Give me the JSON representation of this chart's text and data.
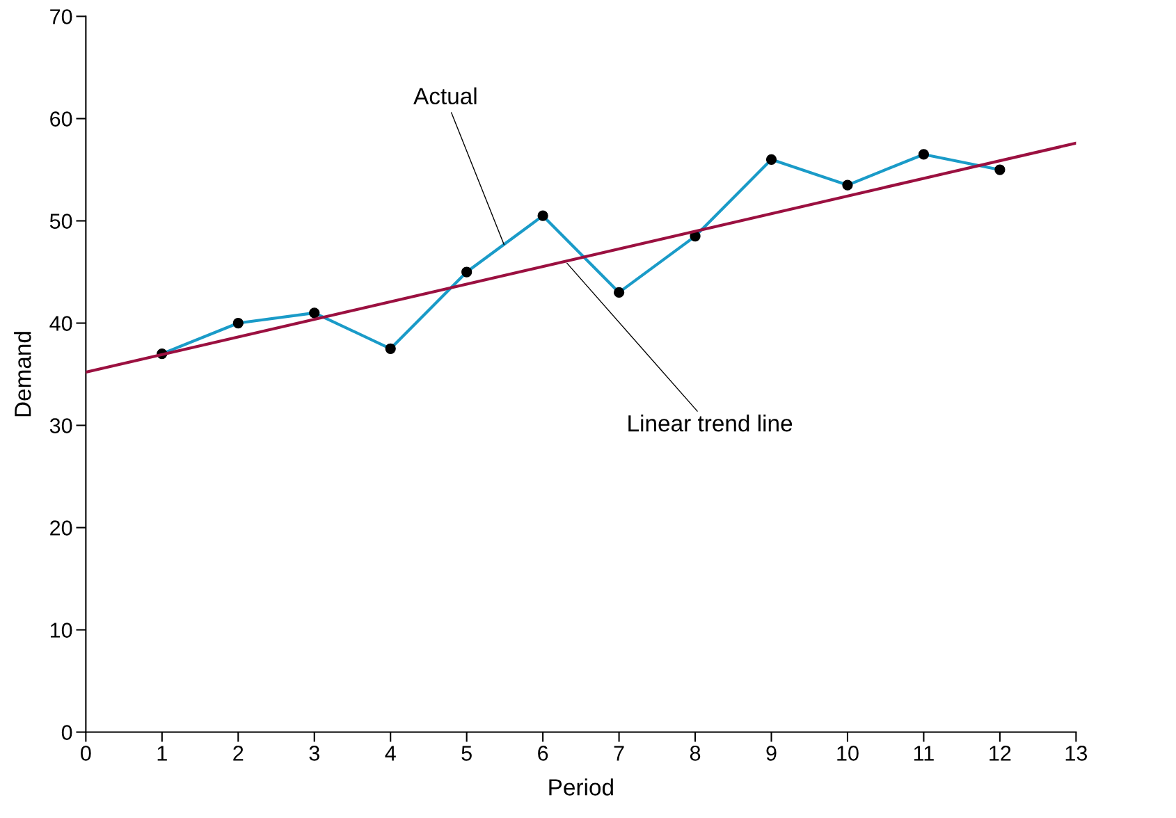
{
  "chart_data": {
    "type": "line",
    "xlabel": "Period",
    "ylabel": "Demand",
    "xlim": [
      0,
      13
    ],
    "xticks": [
      0,
      1,
      2,
      3,
      4,
      5,
      6,
      7,
      8,
      9,
      10,
      11,
      12,
      13
    ],
    "ylim": [
      0,
      70
    ],
    "yticks": [
      0,
      10,
      20,
      30,
      40,
      50,
      60,
      70
    ],
    "grid": false,
    "legend": false,
    "series": [
      {
        "color": "#1a9bc8",
        "marker": "circle",
        "x": [
          1,
          2,
          3,
          4,
          5,
          6,
          7,
          8,
          9,
          10,
          11,
          12
        ],
        "values": [
          37,
          40,
          41,
          37.5,
          45,
          50.5,
          43,
          48.5,
          56,
          53.5,
          56.5,
          55
        ]
      },
      {
        "color": "#9b1040",
        "marker": "none",
        "x": [
          0,
          13
        ],
        "values": [
          35.2,
          57.6
        ]
      }
    ],
    "annotations": [
      {
        "text": "Actual",
        "x": 5.5,
        "y": 47.5
      },
      {
        "text": "Linear trend line",
        "x": 6.3,
        "y": 46
      }
    ]
  }
}
